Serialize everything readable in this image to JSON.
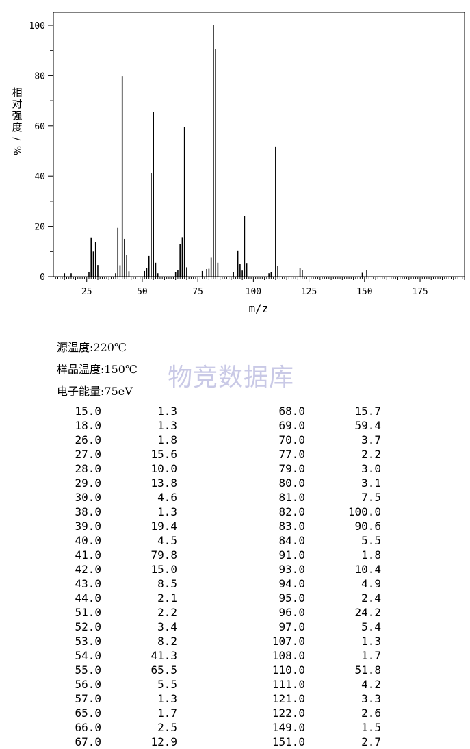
{
  "chart_data": {
    "type": "bar",
    "xlabel": "m/z",
    "ylabel": "相对强度/%",
    "xlim": [
      10,
      195
    ],
    "ylim": [
      0,
      100
    ],
    "xticks": [
      25,
      50,
      75,
      100,
      125,
      150,
      175
    ],
    "yticks": [
      0,
      20,
      40,
      60,
      80,
      100
    ],
    "grid": false,
    "x": [
      15,
      18,
      26,
      27,
      28,
      29,
      30,
      38,
      39,
      40,
      41,
      42,
      43,
      44,
      51,
      52,
      53,
      54,
      55,
      56,
      57,
      65,
      66,
      67,
      68,
      69,
      70,
      77,
      79,
      80,
      81,
      82,
      83,
      84,
      91,
      93,
      94,
      95,
      96,
      97,
      107,
      108,
      110,
      111,
      121,
      122,
      149,
      151
    ],
    "values": [
      1.3,
      1.3,
      1.8,
      15.6,
      10.0,
      13.8,
      4.6,
      1.3,
      19.4,
      4.5,
      79.8,
      15.0,
      8.5,
      2.1,
      2.2,
      3.4,
      8.2,
      41.3,
      65.5,
      5.5,
      1.3,
      1.7,
      2.5,
      12.9,
      15.7,
      59.4,
      3.7,
      2.2,
      3.0,
      3.1,
      7.5,
      100.0,
      90.6,
      5.5,
      1.8,
      10.4,
      4.9,
      2.4,
      24.2,
      5.4,
      1.3,
      1.7,
      51.8,
      4.2,
      3.3,
      2.6,
      1.5,
      2.7
    ]
  },
  "conditions": {
    "source_temp": "源温度:220℃",
    "sample_temp": "样品温度:150℃",
    "electron_energy": "电子能量:75eV"
  },
  "watermark": "物竞数据库",
  "table": {
    "left": [
      [
        "15.0",
        "1.3"
      ],
      [
        "18.0",
        "1.3"
      ],
      [
        "26.0",
        "1.8"
      ],
      [
        "27.0",
        "15.6"
      ],
      [
        "28.0",
        "10.0"
      ],
      [
        "29.0",
        "13.8"
      ],
      [
        "30.0",
        "4.6"
      ],
      [
        "38.0",
        "1.3"
      ],
      [
        "39.0",
        "19.4"
      ],
      [
        "40.0",
        "4.5"
      ],
      [
        "41.0",
        "79.8"
      ],
      [
        "42.0",
        "15.0"
      ],
      [
        "43.0",
        "8.5"
      ],
      [
        "44.0",
        "2.1"
      ],
      [
        "51.0",
        "2.2"
      ],
      [
        "52.0",
        "3.4"
      ],
      [
        "53.0",
        "8.2"
      ],
      [
        "54.0",
        "41.3"
      ],
      [
        "55.0",
        "65.5"
      ],
      [
        "56.0",
        "5.5"
      ],
      [
        "57.0",
        "1.3"
      ],
      [
        "65.0",
        "1.7"
      ],
      [
        "66.0",
        "2.5"
      ],
      [
        "67.0",
        "12.9"
      ]
    ],
    "right": [
      [
        "68.0",
        "15.7"
      ],
      [
        "69.0",
        "59.4"
      ],
      [
        "70.0",
        "3.7"
      ],
      [
        "77.0",
        "2.2"
      ],
      [
        "79.0",
        "3.0"
      ],
      [
        "80.0",
        "3.1"
      ],
      [
        "81.0",
        "7.5"
      ],
      [
        "82.0",
        "100.0"
      ],
      [
        "83.0",
        "90.6"
      ],
      [
        "84.0",
        "5.5"
      ],
      [
        "91.0",
        "1.8"
      ],
      [
        "93.0",
        "10.4"
      ],
      [
        "94.0",
        "4.9"
      ],
      [
        "95.0",
        "2.4"
      ],
      [
        "96.0",
        "24.2"
      ],
      [
        "97.0",
        "5.4"
      ],
      [
        "107.0",
        "1.3"
      ],
      [
        "108.0",
        "1.7"
      ],
      [
        "110.0",
        "51.8"
      ],
      [
        "111.0",
        "4.2"
      ],
      [
        "121.0",
        "3.3"
      ],
      [
        "122.0",
        "2.6"
      ],
      [
        "149.0",
        "1.5"
      ],
      [
        "151.0",
        "2.7"
      ]
    ]
  }
}
